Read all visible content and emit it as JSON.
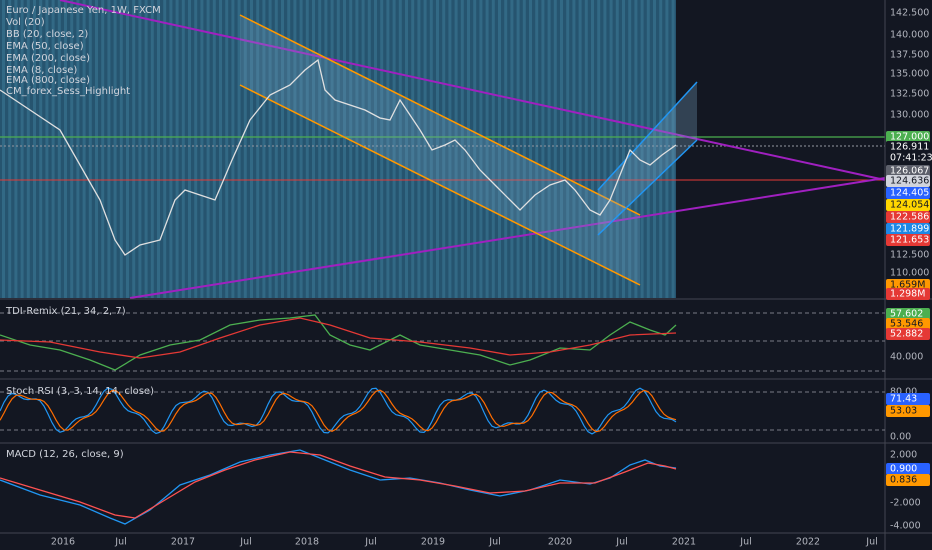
{
  "header": {
    "symbol": "Euro / Japanese Yen, 1W, FXCM",
    "indicators": [
      "Vol (20)",
      "BB (20, close, 2)",
      "EMA (50, close)",
      "EMA (200, close)",
      "EMA (8, close)",
      "EMA (800, close)",
      "CM_forex_Sess_Highlight"
    ]
  },
  "price_axis": {
    "ticks": [
      "142.500",
      "140.000",
      "137.500",
      "135.000",
      "132.500",
      "130.000",
      "112.500",
      "110.000"
    ],
    "badges": [
      "127.000",
      "126.911",
      "07:41:23",
      "126.067",
      "124.636",
      "124.405",
      "124.054",
      "122.586",
      "121.899",
      "121.653",
      "1.659M",
      "1.298M"
    ]
  },
  "panes": [
    {
      "title": "TDI-Remix (21, 34, 2, 7)",
      "labels": [
        "57.602",
        "53.546",
        "52.882",
        "40.000"
      ]
    },
    {
      "title": "Stoch RSI (3, 3, 14, 14, close)",
      "labels": [
        "80.00",
        "71.43",
        "53.03",
        "0.00"
      ]
    },
    {
      "title": "MACD (12, 26, close, 9)",
      "labels": [
        "2.000",
        "0.900",
        "0.836",
        "-2.000",
        "-4.000"
      ]
    }
  ],
  "time_axis": [
    "2016",
    "Jul",
    "2017",
    "Jul",
    "2018",
    "Jul",
    "2019",
    "Jul",
    "2020",
    "Jul",
    "2021",
    "Jul",
    "2022",
    "Jul"
  ]
}
